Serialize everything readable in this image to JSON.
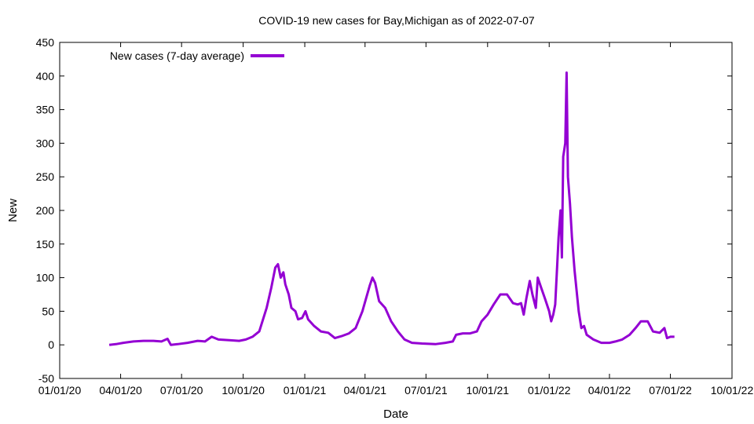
{
  "chart_data": {
    "type": "line",
    "title": "COVID-19 new cases for Bay,Michigan as of 2022-07-07",
    "xlabel": "Date",
    "ylabel": "New",
    "x_range": [
      "2020-01-01",
      "2022-10-01"
    ],
    "ylim": [
      -50,
      450
    ],
    "y_ticks": [
      -50,
      0,
      50,
      100,
      150,
      200,
      250,
      300,
      350,
      400,
      450
    ],
    "y_tick_labels": [
      "-50",
      "0",
      "50",
      "100",
      "150",
      "200",
      "250",
      "300",
      "350",
      "400",
      "450"
    ],
    "x_ticks": [
      "2020-01-01",
      "2020-04-01",
      "2020-07-01",
      "2020-10-01",
      "2021-01-01",
      "2021-04-01",
      "2021-07-01",
      "2021-10-01",
      "2022-01-01",
      "2022-04-01",
      "2022-07-01",
      "2022-10-01"
    ],
    "x_tick_labels": [
      "01/01/20",
      "04/01/20",
      "07/01/20",
      "10/01/20",
      "01/01/21",
      "04/01/21",
      "07/01/21",
      "10/01/21",
      "01/01/22",
      "04/01/22",
      "07/01/22",
      "10/01/22"
    ],
    "grid": false,
    "legend_position": "top-left",
    "series": [
      {
        "name": "New cases (7-day average)",
        "color": "#9400d3",
        "points": [
          [
            "2020-03-15",
            0
          ],
          [
            "2020-03-25",
            1
          ],
          [
            "2020-04-05",
            3
          ],
          [
            "2020-04-20",
            5
          ],
          [
            "2020-05-05",
            6
          ],
          [
            "2020-05-20",
            6
          ],
          [
            "2020-06-01",
            5
          ],
          [
            "2020-06-10",
            9
          ],
          [
            "2020-06-15",
            0
          ],
          [
            "2020-06-25",
            1
          ],
          [
            "2020-07-10",
            3
          ],
          [
            "2020-07-25",
            6
          ],
          [
            "2020-08-05",
            5
          ],
          [
            "2020-08-15",
            12
          ],
          [
            "2020-08-25",
            8
          ],
          [
            "2020-09-10",
            7
          ],
          [
            "2020-09-25",
            6
          ],
          [
            "2020-10-05",
            8
          ],
          [
            "2020-10-15",
            12
          ],
          [
            "2020-10-25",
            20
          ],
          [
            "2020-11-05",
            55
          ],
          [
            "2020-11-12",
            85
          ],
          [
            "2020-11-18",
            115
          ],
          [
            "2020-11-22",
            120
          ],
          [
            "2020-11-26",
            100
          ],
          [
            "2020-11-30",
            108
          ],
          [
            "2020-12-03",
            90
          ],
          [
            "2020-12-08",
            75
          ],
          [
            "2020-12-12",
            55
          ],
          [
            "2020-12-18",
            50
          ],
          [
            "2020-12-22",
            38
          ],
          [
            "2020-12-28",
            40
          ],
          [
            "2021-01-02",
            50
          ],
          [
            "2021-01-06",
            38
          ],
          [
            "2021-01-15",
            28
          ],
          [
            "2021-01-25",
            20
          ],
          [
            "2021-02-05",
            18
          ],
          [
            "2021-02-15",
            10
          ],
          [
            "2021-02-25",
            13
          ],
          [
            "2021-03-08",
            17
          ],
          [
            "2021-03-18",
            25
          ],
          [
            "2021-03-28",
            50
          ],
          [
            "2021-04-08",
            88
          ],
          [
            "2021-04-12",
            100
          ],
          [
            "2021-04-16",
            92
          ],
          [
            "2021-04-22",
            65
          ],
          [
            "2021-05-01",
            55
          ],
          [
            "2021-05-10",
            35
          ],
          [
            "2021-05-20",
            20
          ],
          [
            "2021-05-30",
            8
          ],
          [
            "2021-06-10",
            3
          ],
          [
            "2021-06-25",
            2
          ],
          [
            "2021-07-15",
            1
          ],
          [
            "2021-07-30",
            3
          ],
          [
            "2021-08-10",
            5
          ],
          [
            "2021-08-15",
            15
          ],
          [
            "2021-08-25",
            17
          ],
          [
            "2021-09-05",
            17
          ],
          [
            "2021-09-15",
            20
          ],
          [
            "2021-09-22",
            35
          ],
          [
            "2021-10-01",
            45
          ],
          [
            "2021-10-10",
            60
          ],
          [
            "2021-10-20",
            75
          ],
          [
            "2021-10-30",
            75
          ],
          [
            "2021-11-08",
            62
          ],
          [
            "2021-11-15",
            60
          ],
          [
            "2021-11-20",
            62
          ],
          [
            "2021-11-24",
            45
          ],
          [
            "2021-11-28",
            70
          ],
          [
            "2021-12-03",
            95
          ],
          [
            "2021-12-07",
            75
          ],
          [
            "2021-12-12",
            55
          ],
          [
            "2021-12-15",
            100
          ],
          [
            "2021-12-20",
            85
          ],
          [
            "2021-12-26",
            68
          ],
          [
            "2022-01-01",
            50
          ],
          [
            "2022-01-04",
            35
          ],
          [
            "2022-01-07",
            45
          ],
          [
            "2022-01-10",
            60
          ],
          [
            "2022-01-13",
            120
          ],
          [
            "2022-01-15",
            160
          ],
          [
            "2022-01-18",
            200
          ],
          [
            "2022-01-20",
            130
          ],
          [
            "2022-01-22",
            280
          ],
          [
            "2022-01-25",
            300
          ],
          [
            "2022-01-27",
            405
          ],
          [
            "2022-01-29",
            250
          ],
          [
            "2022-02-01",
            210
          ],
          [
            "2022-02-04",
            160
          ],
          [
            "2022-02-08",
            110
          ],
          [
            "2022-02-14",
            50
          ],
          [
            "2022-02-18",
            25
          ],
          [
            "2022-02-22",
            28
          ],
          [
            "2022-02-26",
            15
          ],
          [
            "2022-03-08",
            8
          ],
          [
            "2022-03-20",
            3
          ],
          [
            "2022-04-01",
            3
          ],
          [
            "2022-04-10",
            5
          ],
          [
            "2022-04-20",
            8
          ],
          [
            "2022-05-01",
            15
          ],
          [
            "2022-05-10",
            25
          ],
          [
            "2022-05-18",
            35
          ],
          [
            "2022-05-28",
            35
          ],
          [
            "2022-06-05",
            20
          ],
          [
            "2022-06-15",
            18
          ],
          [
            "2022-06-22",
            25
          ],
          [
            "2022-06-26",
            10
          ],
          [
            "2022-07-01",
            12
          ],
          [
            "2022-07-07",
            12
          ]
        ]
      }
    ]
  }
}
